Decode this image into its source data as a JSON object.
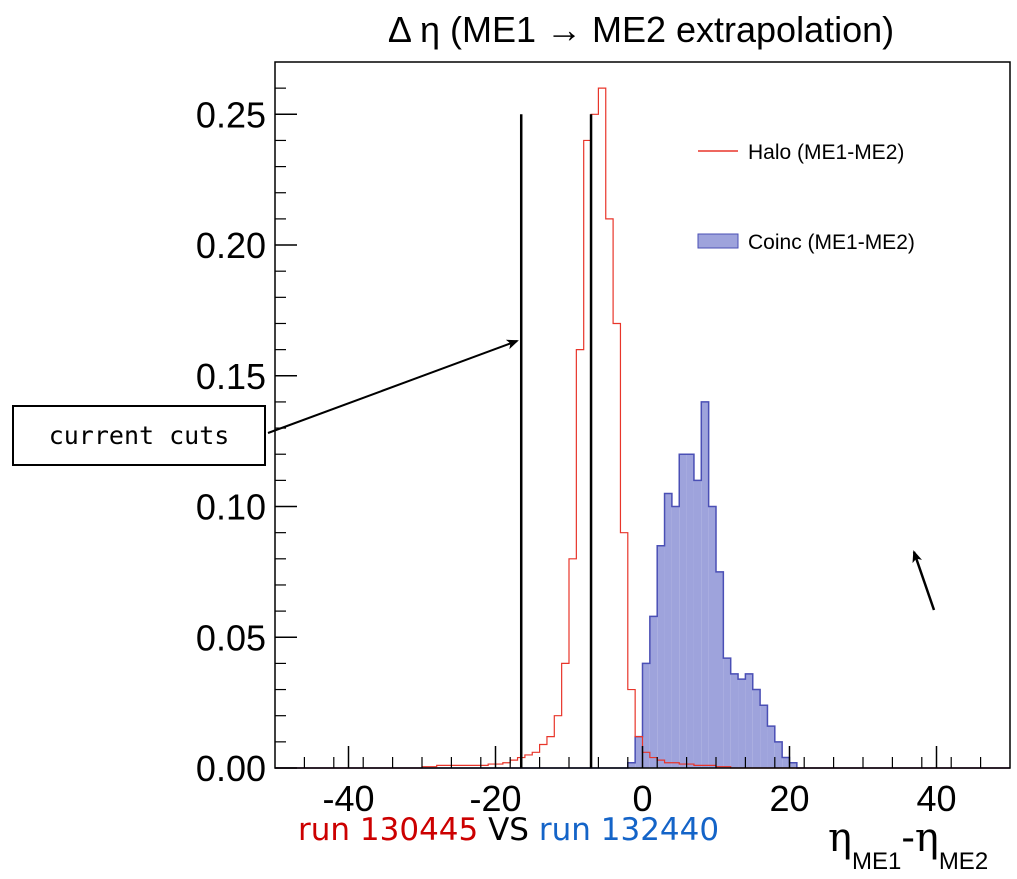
{
  "chart_data": {
    "type": "histogram",
    "title": "Δ η (ME1 → ME2 extrapolation)",
    "xlim": [
      -50,
      50
    ],
    "ylim": [
      0,
      0.27
    ],
    "x_ticks": [
      "-40",
      "-20",
      "0",
      "20",
      "40"
    ],
    "x_tick_values": [
      -40,
      -20,
      0,
      20,
      40
    ],
    "y_ticks": [
      "0.00",
      "0.05",
      "0.10",
      "0.15",
      "0.20",
      "0.25"
    ],
    "y_tick_values": [
      0,
      0.05,
      0.1,
      0.15,
      0.2,
      0.25
    ],
    "xlabel": {
      "base1": "η",
      "sub1": "ME1",
      "sep": "-",
      "base2": "η",
      "sub2": "ME2"
    },
    "bin_edges": [
      -50,
      -49,
      -48,
      -47,
      -46,
      -45,
      -44,
      -43,
      -42,
      -41,
      -40,
      -39,
      -38,
      -37,
      -36,
      -35,
      -34,
      -33,
      -32,
      -31,
      -30,
      -29,
      -28,
      -27,
      -26,
      -25,
      -24,
      -23,
      -22,
      -21,
      -20,
      -19,
      -18,
      -17,
      -16,
      -15,
      -14,
      -13,
      -12,
      -11,
      -10,
      -9,
      -8,
      -7,
      -6,
      -5,
      -4,
      -3,
      -2,
      -1,
      0,
      1,
      2,
      3,
      4,
      5,
      6,
      7,
      8,
      9,
      10,
      11,
      12,
      13,
      14,
      15,
      16,
      17,
      18,
      19,
      20,
      21,
      22,
      23,
      24,
      25,
      26,
      27,
      28,
      29,
      30,
      31,
      32,
      33,
      34,
      35,
      36,
      37,
      38,
      39,
      40,
      41,
      42,
      43,
      44,
      45,
      46,
      47,
      48,
      49,
      50
    ],
    "series": [
      {
        "name": "Halo (ME1-ME2)",
        "color": "#e8352a",
        "style": "step",
        "values": [
          0,
          0,
          0,
          0,
          0,
          0,
          0,
          0,
          0,
          0,
          0,
          0,
          0,
          0,
          0,
          0,
          0,
          0,
          0,
          0,
          0.0005,
          0.0005,
          0.001,
          0.001,
          0.001,
          0.001,
          0.001,
          0.001,
          0.001,
          0.0015,
          0.0015,
          0.002,
          0.003,
          0.004,
          0.005,
          0.006,
          0.009,
          0.012,
          0.02,
          0.04,
          0.08,
          0.16,
          0.24,
          0.25,
          0.26,
          0.21,
          0.17,
          0.09,
          0.03,
          0.012,
          0.006,
          0.004,
          0.003,
          0.002,
          0.002,
          0.0015,
          0.0015,
          0.001,
          0.001,
          0.001,
          0.0005,
          0.0005,
          0,
          0,
          0,
          0,
          0,
          0,
          0,
          0,
          0,
          0,
          0,
          0,
          0,
          0,
          0,
          0,
          0,
          0,
          0,
          0,
          0,
          0,
          0,
          0,
          0,
          0,
          0,
          0,
          0,
          0,
          0,
          0,
          0,
          0,
          0,
          0,
          0,
          0
        ]
      },
      {
        "name": "Coinc (ME1-ME2)",
        "color": "#4a4fb5",
        "fill": "#9ea3dc",
        "style": "filled",
        "values": [
          0,
          0,
          0,
          0,
          0,
          0,
          0,
          0,
          0,
          0,
          0,
          0,
          0,
          0,
          0,
          0,
          0,
          0,
          0,
          0,
          0,
          0,
          0,
          0,
          0,
          0,
          0,
          0,
          0,
          0,
          0,
          0,
          0,
          0,
          0,
          0,
          0,
          0,
          0,
          0,
          0,
          0,
          0,
          0,
          0,
          0,
          0,
          0,
          0.002,
          0.012,
          0.04,
          0.058,
          0.085,
          0.105,
          0.1,
          0.12,
          0.12,
          0.11,
          0.14,
          0.1,
          0.075,
          0.042,
          0.036,
          0.034,
          0.036,
          0.03,
          0.024,
          0.016,
          0.01,
          0.004,
          0.002,
          0,
          0,
          0,
          0,
          0,
          0,
          0,
          0,
          0,
          0,
          0,
          0,
          0,
          0,
          0,
          0,
          0,
          0,
          0,
          0,
          0,
          0,
          0,
          0,
          0,
          0,
          0,
          0,
          0
        ]
      }
    ],
    "cut_lines": [
      -16.5,
      -7
    ],
    "legend_placement": "top-right",
    "grid": false
  },
  "annotations": {
    "cuts_label": "current cuts",
    "run_line": {
      "prefix_a": "run ",
      "run_a": "130445",
      "vs": " VS ",
      "prefix_b": "run ",
      "run_b": "132440"
    }
  },
  "colors": {
    "run_a": "#cc0000",
    "run_b": "#1464c8",
    "vs": "#000000"
  }
}
